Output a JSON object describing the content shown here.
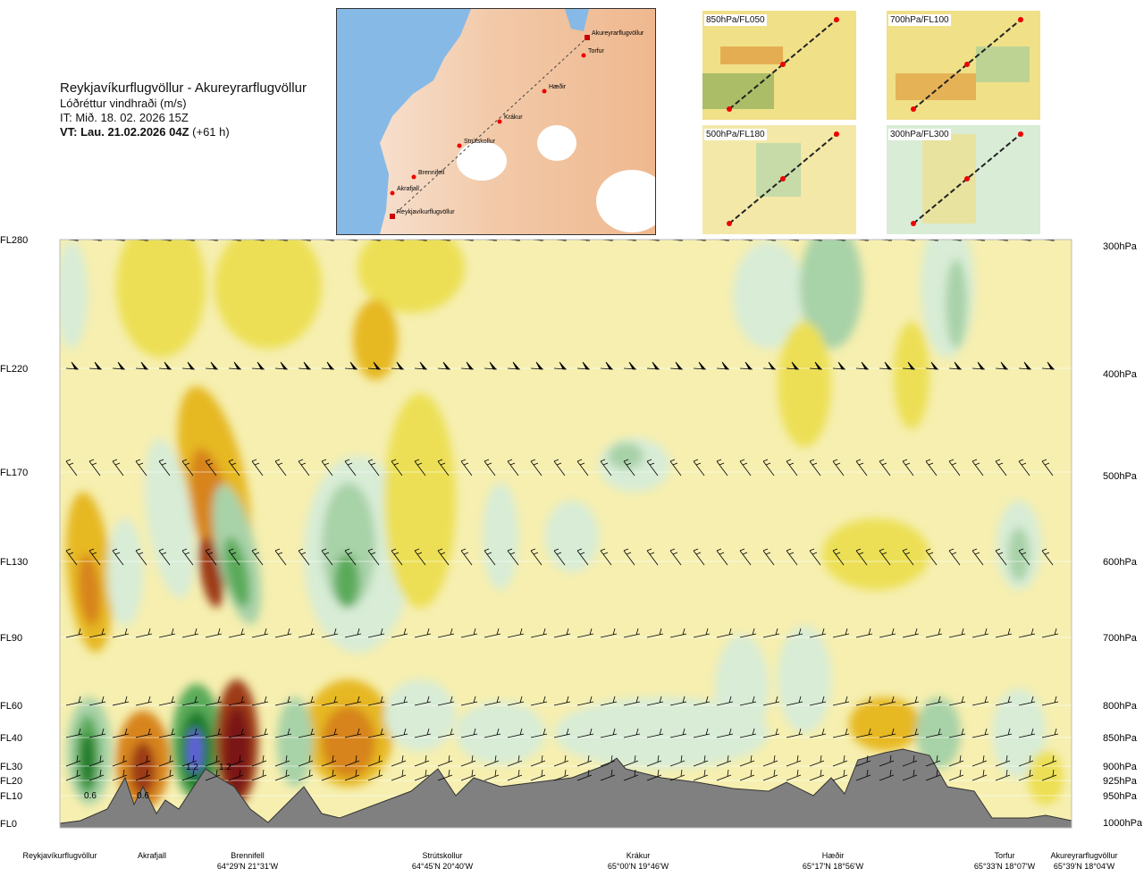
{
  "header": {
    "route": "Reykjavíkurflugvöllur - Akureyrarflugvöllur",
    "parameter": "Lóðréttur vindhraði (m/s)",
    "issue_time": "IT: Mið. 18. 02. 2026 15Z",
    "valid_time": "VT: Lau. 21.02.2026 04Z",
    "lead_time": "(+61 h)"
  },
  "route_map": {
    "points": [
      "Akureyrarflugvöllur",
      "Torfur",
      "Hæðir",
      "Krákur",
      "Strútskollur",
      "Brennifell",
      "Akrafjall",
      "Reykjavíkurflugvöllur"
    ]
  },
  "level_maps": [
    {
      "label": "850hPa/FL050"
    },
    {
      "label": "700hPa/FL100"
    },
    {
      "label": "500hPa/FL180"
    },
    {
      "label": "300hPa/FL300"
    }
  ],
  "chart_data": {
    "type": "heatmap",
    "title": "Lóðréttur vindhraði (m/s)",
    "left_axis_levels": [
      "FL280",
      "FL220",
      "FL170",
      "FL130",
      "FL90",
      "FL60",
      "FL40",
      "FL30",
      "FL20",
      "FL10",
      "FL0"
    ],
    "right_axis_levels": [
      "300hPa",
      "400hPa",
      "500hPa",
      "600hPa",
      "700hPa",
      "800hPa",
      "850hPa",
      "900hPa",
      "925hPa",
      "950hPa",
      "1000hPa"
    ],
    "waypoints": [
      {
        "name": "Reykjavíkurflugvöllur",
        "coord": ""
      },
      {
        "name": "Akrafjall",
        "coord": ""
      },
      {
        "name": "Brennifell",
        "coord": "64°29'N 21°31'W"
      },
      {
        "name": "Strútskollur",
        "coord": "64°45'N 20°40'W"
      },
      {
        "name": "Krákur",
        "coord": "65°00'N 19°46'W"
      },
      {
        "name": "Hæðir",
        "coord": "65°17'N 18°56'W"
      },
      {
        "name": "Torfur",
        "coord": "65°33'N 18°07'W"
      },
      {
        "name": "Akureyrarflugvöllur",
        "coord": "65°39'N 18°04'W"
      }
    ],
    "value_labels": [
      "0.6",
      "0.6",
      "1.2",
      "1.2"
    ],
    "colors": {
      "background": "#f6efb0",
      "up_weak": "#ecdf55",
      "up_mod": "#e6b820",
      "up_strong": "#d7841f",
      "up_vstrong": "#9c3b12",
      "up_max": "#7a1212",
      "down_weak": "#d8ecd6",
      "down_mod": "#a8d2a8",
      "down_strong": "#5aaa5a",
      "down_vstrong": "#1f7a2a",
      "down_max": "#6060d8",
      "terrain": "#808080"
    }
  }
}
